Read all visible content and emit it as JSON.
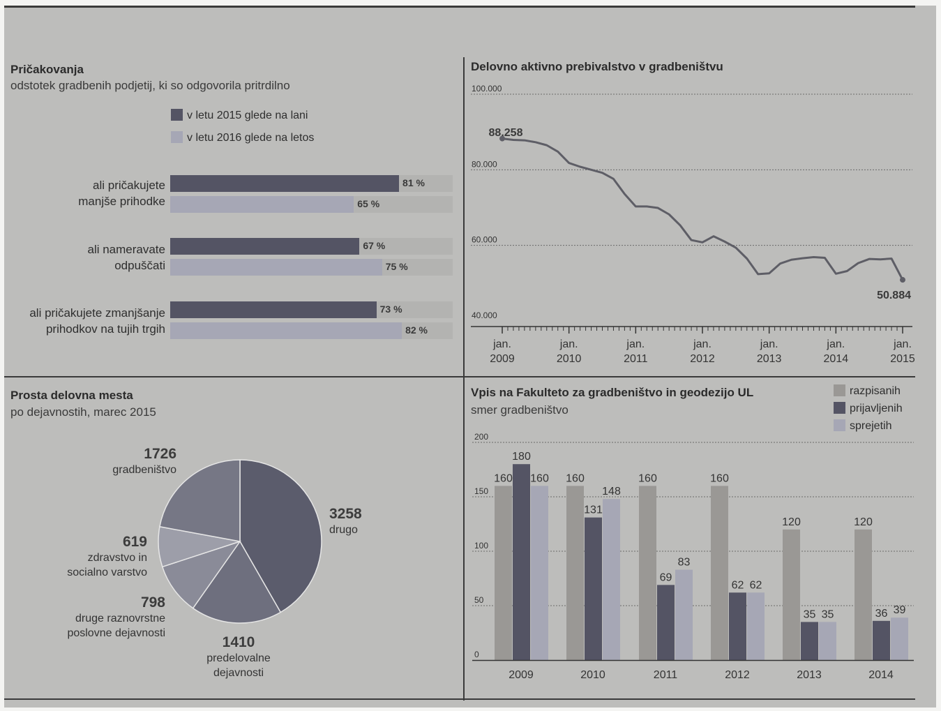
{
  "colors": {
    "dark": "#545464",
    "mid": "#8c8d99",
    "light": "#a6a7b5",
    "tan": "#9a9895",
    "line": "#5e5e66"
  },
  "expectations": {
    "title": "Pričakovanja",
    "subtitle": "odstotek gradbenih podjetij, ki so odgovorila pritrdilno",
    "legend": [
      "v letu 2015 glede na lani",
      "v letu 2016 glede na letos"
    ],
    "items": [
      {
        "label_line1": "ali pričakujete",
        "label_line2": "manjše prihodke",
        "v2015": 81,
        "v2016": 65,
        "v2015_text": "81 %",
        "v2016_text": "65 %"
      },
      {
        "label_line1": "ali nameravate",
        "label_line2": "odpuščati",
        "v2015": 67,
        "v2016": 75,
        "v2015_text": "67 %",
        "v2016_text": "75 %"
      },
      {
        "label_line1": "ali pričakujete zmanjšanje",
        "label_line2": "prihodkov na tujih trgih",
        "v2015": 73,
        "v2016": 82,
        "v2015_text": "73 %",
        "v2016_text": "82 %"
      }
    ]
  },
  "workforce": {
    "title": "Delovno aktivno prebivalstvo v gradbeništvu",
    "y_ticks": [
      "100.000",
      "80.000",
      "60.000",
      "40.000"
    ],
    "x_ticks": [
      {
        "top": "jan.",
        "bottom": "2009"
      },
      {
        "top": "jan.",
        "bottom": "2010"
      },
      {
        "top": "jan.",
        "bottom": "2011"
      },
      {
        "top": "jan.",
        "bottom": "2012"
      },
      {
        "top": "jan.",
        "bottom": "2013"
      },
      {
        "top": "jan.",
        "bottom": "2014"
      },
      {
        "top": "jan.",
        "bottom": "2015"
      }
    ],
    "start_label": "88.258",
    "end_label": "50.884"
  },
  "vacancies": {
    "title": "Prosta delovna mesta",
    "subtitle": "po dejavnostih, marec 2015",
    "slices": [
      {
        "value_text": "3258",
        "line1": "drugo",
        "line2": "",
        "value": 3258
      },
      {
        "value_text": "1410",
        "line1": "predelovalne",
        "line2": "dejavnosti",
        "value": 1410
      },
      {
        "value_text": "798",
        "line1": "druge raznovrstne",
        "line2": "poslovne dejavnosti",
        "value": 798
      },
      {
        "value_text": "619",
        "line1": "zdravstvo in",
        "line2": "socialno varstvo",
        "value": 619
      },
      {
        "value_text": "1726",
        "line1": "gradbeništvo",
        "line2": "",
        "value": 1726
      }
    ]
  },
  "enrolment": {
    "title": "Vpis na Fakulteto za gradbeništvo in geodezijo UL",
    "subtitle": "smer gradbeništvo",
    "legend": [
      "razpisanih",
      "prijavljenih",
      "sprejetih"
    ],
    "y_ticks": [
      "200",
      "150",
      "100",
      "50",
      "0"
    ]
  },
  "chart_data": [
    {
      "type": "bar",
      "title": "Pričakovanja",
      "subtitle": "odstotek gradbenih podjetij, ki so odgovorila pritrdilno",
      "categories": [
        "ali pričakujete manjše prihodke",
        "ali nameravate odpuščati",
        "ali pričakujete zmanjšanje prihodkov na tujih trgih"
      ],
      "series": [
        {
          "name": "v letu 2015 glede na lani",
          "values": [
            81,
            67,
            73
          ]
        },
        {
          "name": "v letu 2016 glede na letos",
          "values": [
            65,
            75,
            82
          ]
        }
      ],
      "orientation": "horizontal",
      "xlim": [
        0,
        100
      ],
      "legend": "top"
    },
    {
      "type": "line",
      "title": "Delovno aktivno prebivalstvo v gradbeništvu",
      "ylim": [
        40000,
        100000
      ],
      "x": [
        "2009-01",
        "2009-03",
        "2009-05",
        "2009-07",
        "2009-09",
        "2009-11",
        "2010-01",
        "2010-03",
        "2010-05",
        "2010-07",
        "2010-09",
        "2010-11",
        "2011-01",
        "2011-03",
        "2011-05",
        "2011-07",
        "2011-09",
        "2011-11",
        "2012-01",
        "2012-03",
        "2012-05",
        "2012-07",
        "2012-09",
        "2012-11",
        "2013-01",
        "2013-03",
        "2013-05",
        "2013-07",
        "2013-09",
        "2013-11",
        "2014-01",
        "2014-03",
        "2014-05",
        "2014-07",
        "2014-09",
        "2014-11",
        "2015-01"
      ],
      "values": [
        88258,
        87900,
        87800,
        87300,
        86500,
        84800,
        81800,
        80800,
        80000,
        79200,
        77600,
        73600,
        70300,
        70300,
        69900,
        68200,
        65300,
        61400,
        60800,
        62400,
        61000,
        59400,
        56500,
        52400,
        52600,
        55200,
        56200,
        56600,
        56900,
        56700,
        52500,
        53200,
        55300,
        56400,
        56300,
        56500,
        50884
      ],
      "legend": "none",
      "grid": true
    },
    {
      "type": "pie",
      "title": "Prosta delovna mesta",
      "subtitle": "po dejavnostih, marec 2015",
      "labels": [
        "drugo",
        "predelovalne dejavnosti",
        "druge raznovrstne poslovne dejavnosti",
        "zdravstvo in socialno varstvo",
        "gradbeništvo"
      ],
      "values": [
        3258,
        1410,
        798,
        619,
        1726
      ]
    },
    {
      "type": "bar",
      "title": "Vpis na Fakulteto za gradbeništvo in geodezijo UL",
      "subtitle": "smer gradbeništvo",
      "categories": [
        "2009",
        "2010",
        "2011",
        "2012",
        "2013",
        "2014"
      ],
      "series": [
        {
          "name": "razpisanih",
          "values": [
            160,
            160,
            160,
            160,
            120,
            120
          ]
        },
        {
          "name": "prijavljenih",
          "values": [
            180,
            131,
            69,
            62,
            35,
            36
          ]
        },
        {
          "name": "sprejetih",
          "values": [
            160,
            148,
            83,
            62,
            35,
            39
          ]
        }
      ],
      "ylim": [
        0,
        200
      ],
      "legend": "top-right",
      "grid": true
    }
  ]
}
